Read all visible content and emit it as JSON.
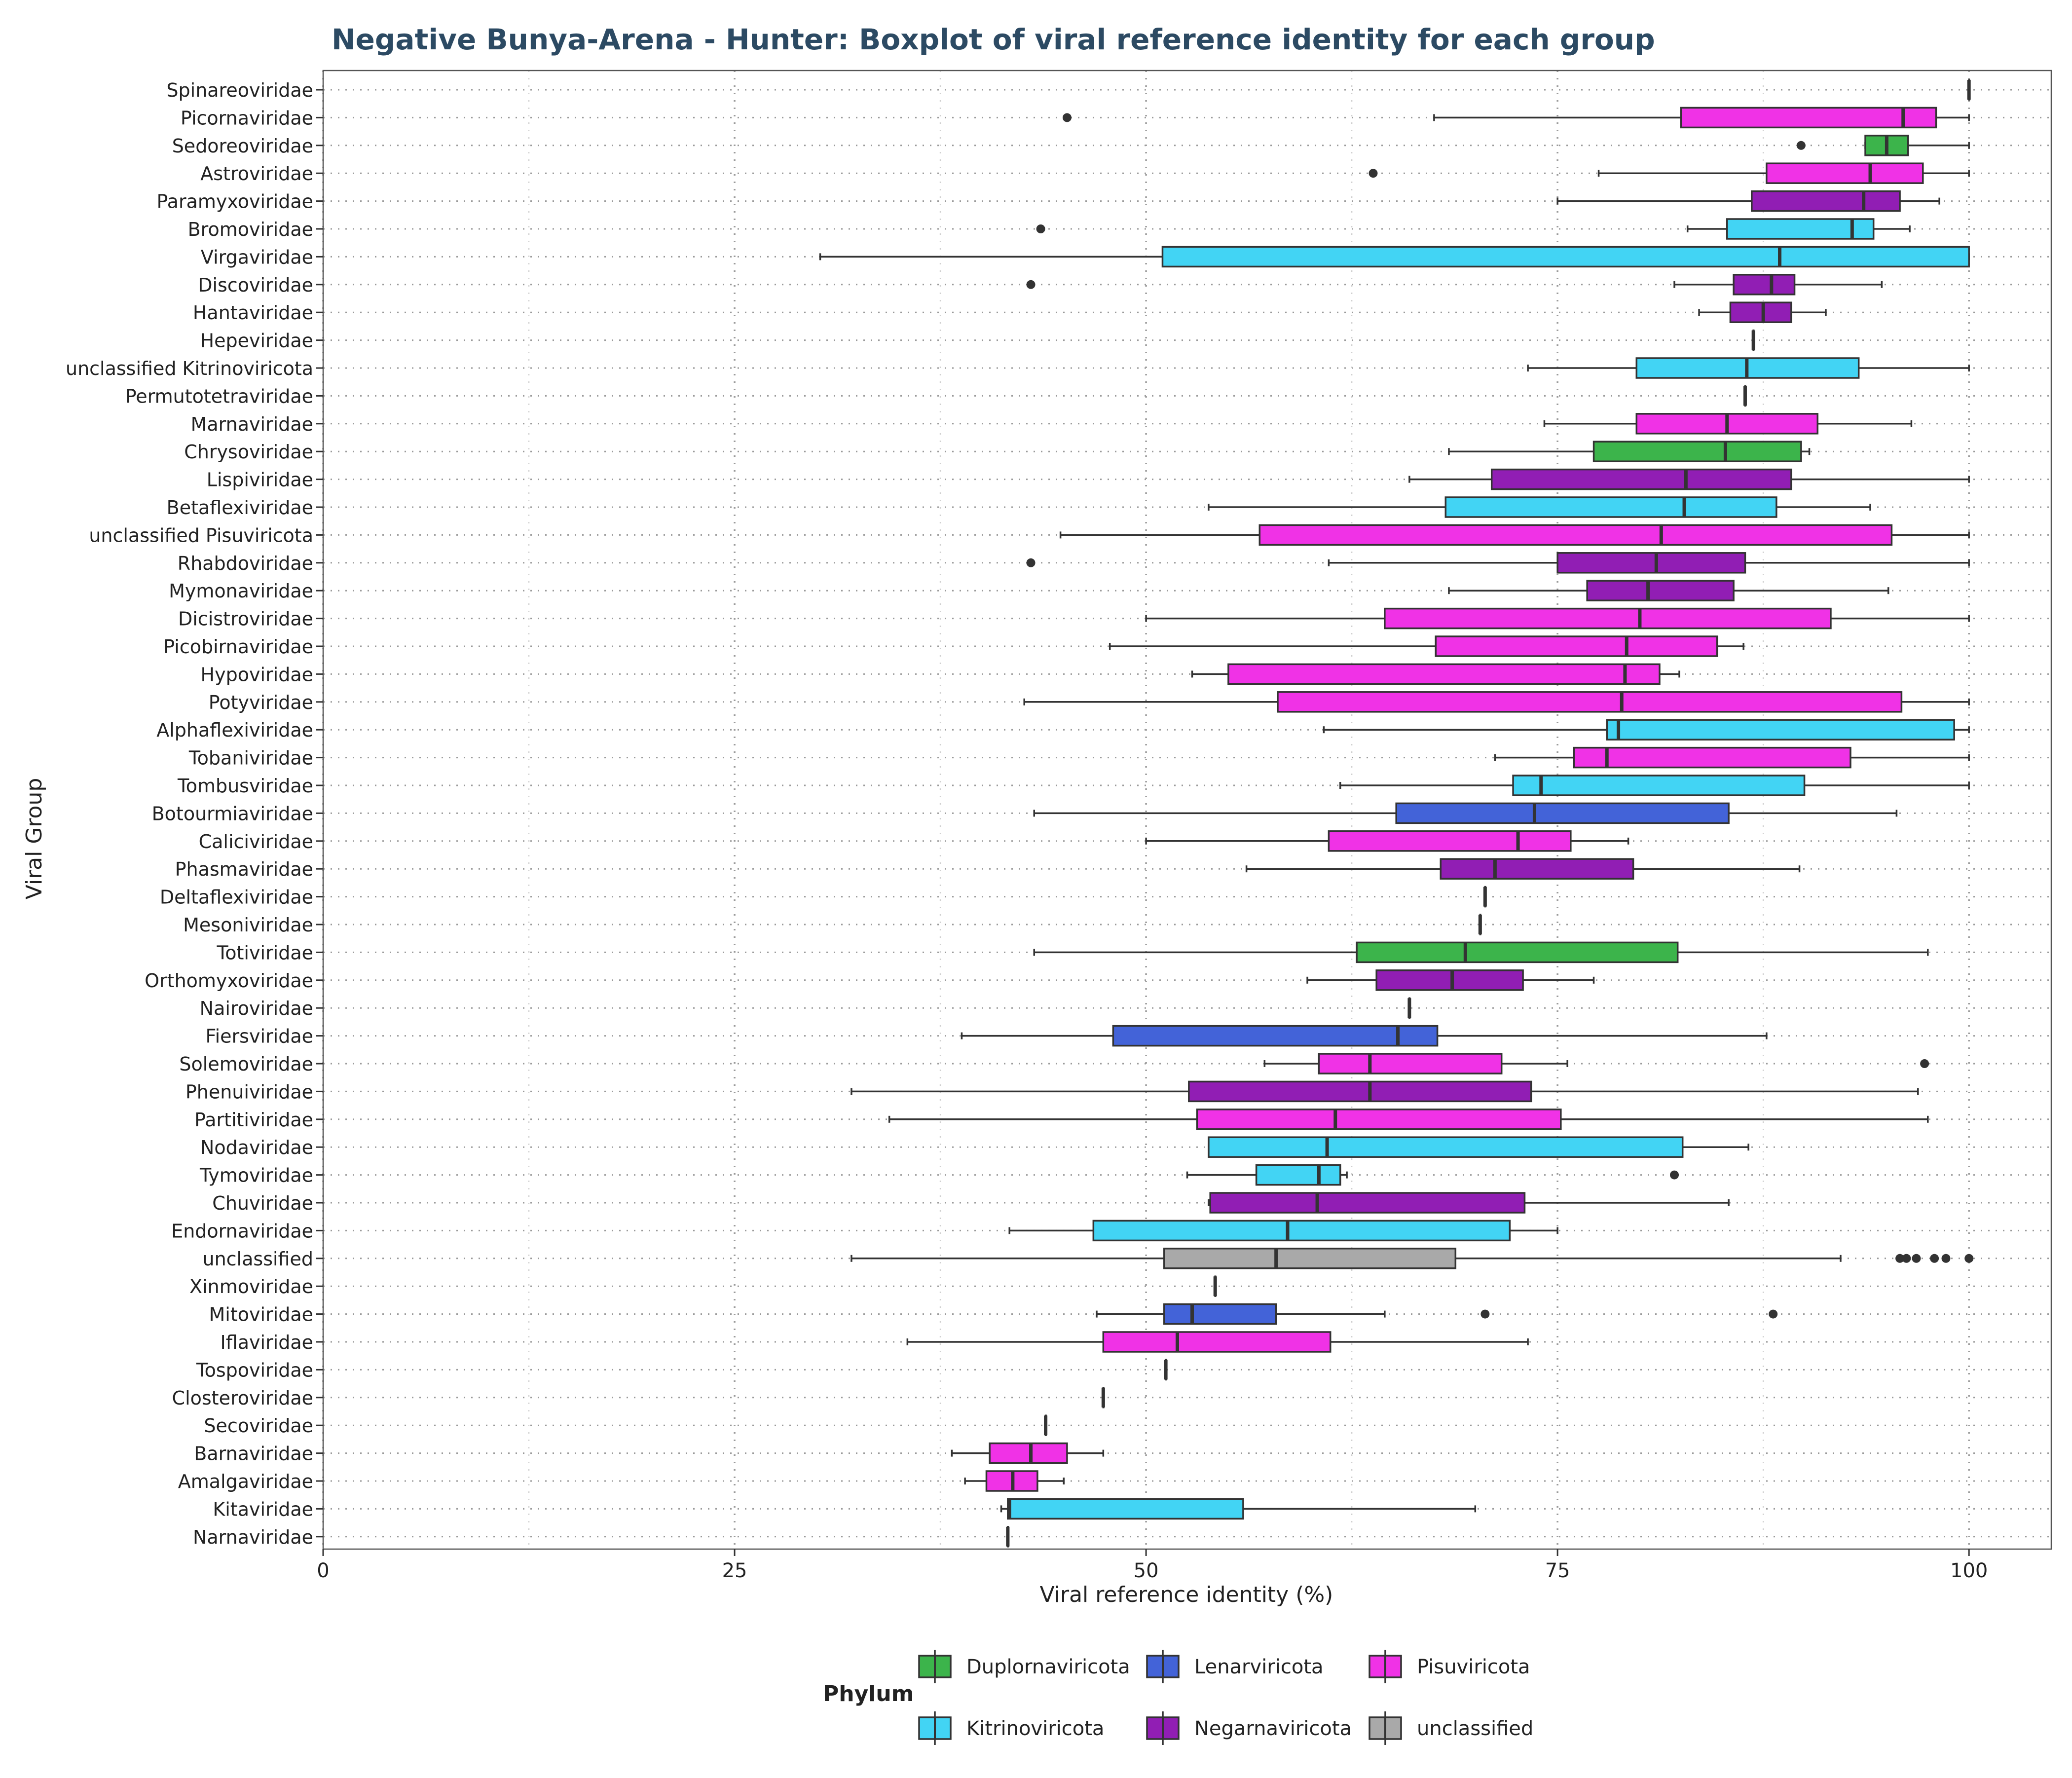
{
  "chart_data": {
    "type": "boxplot",
    "orientation": "horizontal",
    "title": "Negative Bunya-Arena - Hunter: Boxplot of viral reference identity for each group",
    "xlabel": "Viral reference identity (%)",
    "ylabel": "Viral Group",
    "xlim": [
      0,
      105
    ],
    "xticks": [
      0,
      25,
      50,
      75,
      100
    ],
    "grid": true,
    "legend": {
      "title": "Phylum",
      "position": "bottom",
      "items": [
        {
          "name": "Duplornaviricota",
          "color": "#3cb44b"
        },
        {
          "name": "Lenarviricota",
          "color": "#4363d8"
        },
        {
          "name": "Pisuviricota",
          "color": "#f032e6"
        },
        {
          "name": "Kitrinoviricota",
          "color": "#42d4f4"
        },
        {
          "name": "Negarnaviricota",
          "color": "#911eb4"
        },
        {
          "name": "unclassified",
          "color": "#a9a9a9"
        }
      ]
    },
    "groups": [
      {
        "name": "Spinareoviridae",
        "phylum": "Duplornaviricota",
        "min": 100,
        "q1": 100,
        "median": 100,
        "q3": 100,
        "max": 100,
        "outliers": []
      },
      {
        "name": "Picornaviridae",
        "phylum": "Pisuviricota",
        "min": 67.5,
        "q1": 82.5,
        "median": 96,
        "q3": 98,
        "max": 100,
        "outliers": [
          45.2
        ]
      },
      {
        "name": "Sedoreoviridae",
        "phylum": "Duplornaviricota",
        "min": 93.7,
        "q1": 93.7,
        "median": 95,
        "q3": 96.3,
        "max": 100,
        "outliers": [
          89.8
        ]
      },
      {
        "name": "Astroviridae",
        "phylum": "Pisuviricota",
        "min": 77.5,
        "q1": 87.7,
        "median": 94,
        "q3": 97.2,
        "max": 100,
        "outliers": [
          63.8
        ]
      },
      {
        "name": "Paramyxoviridae",
        "phylum": "Negarnaviricota",
        "min": 75,
        "q1": 86.8,
        "median": 93.6,
        "q3": 95.8,
        "max": 98.2,
        "outliers": []
      },
      {
        "name": "Bromoviridae",
        "phylum": "Kitrinoviricota",
        "min": 82.9,
        "q1": 85.3,
        "median": 92.9,
        "q3": 94.2,
        "max": 96.4,
        "outliers": [
          43.6
        ]
      },
      {
        "name": "Virgaviridae",
        "phylum": "Kitrinoviricota",
        "min": 30.2,
        "q1": 51,
        "median": 88.5,
        "q3": 100,
        "max": 100,
        "outliers": []
      },
      {
        "name": "Discoviridae",
        "phylum": "Negarnaviricota",
        "min": 82.1,
        "q1": 85.7,
        "median": 88,
        "q3": 89.4,
        "max": 94.7,
        "outliers": [
          43
        ]
      },
      {
        "name": "Hantaviridae",
        "phylum": "Negarnaviricota",
        "min": 83.6,
        "q1": 85.5,
        "median": 87.5,
        "q3": 89.2,
        "max": 91.3,
        "outliers": []
      },
      {
        "name": "Hepeviridae",
        "phylum": "Kitrinoviricota",
        "min": 86.9,
        "q1": 86.9,
        "median": 86.9,
        "q3": 86.9,
        "max": 86.9,
        "outliers": []
      },
      {
        "name": "unclassified Kitrinoviricota",
        "phylum": "Kitrinoviricota",
        "min": 73.2,
        "q1": 79.8,
        "median": 86.5,
        "q3": 93.3,
        "max": 100,
        "outliers": []
      },
      {
        "name": "Permutotetraviridae",
        "phylum": "Pisuviricota",
        "min": 86.4,
        "q1": 86.4,
        "median": 86.4,
        "q3": 86.4,
        "max": 86.4,
        "outliers": []
      },
      {
        "name": "Marnaviridae",
        "phylum": "Pisuviricota",
        "min": 74.2,
        "q1": 79.8,
        "median": 85.3,
        "q3": 90.8,
        "max": 96.5,
        "outliers": []
      },
      {
        "name": "Chrysoviridae",
        "phylum": "Duplornaviricota",
        "min": 68.4,
        "q1": 77.2,
        "median": 85.2,
        "q3": 89.8,
        "max": 90.3,
        "outliers": []
      },
      {
        "name": "Lispiviridae",
        "phylum": "Negarnaviricota",
        "min": 66,
        "q1": 71,
        "median": 82.8,
        "q3": 89.2,
        "max": 100,
        "outliers": []
      },
      {
        "name": "Betaflexiviridae",
        "phylum": "Kitrinoviricota",
        "min": 53.8,
        "q1": 68.2,
        "median": 82.7,
        "q3": 88.3,
        "max": 94,
        "outliers": []
      },
      {
        "name": "unclassified Pisuviricota",
        "phylum": "Pisuviricota",
        "min": 44.8,
        "q1": 56.9,
        "median": 81.3,
        "q3": 95.3,
        "max": 100,
        "outliers": []
      },
      {
        "name": "Rhabdoviridae",
        "phylum": "Negarnaviricota",
        "min": 61.1,
        "q1": 75,
        "median": 81,
        "q3": 86.4,
        "max": 100,
        "outliers": [
          43
        ]
      },
      {
        "name": "Mymonaviridae",
        "phylum": "Negarnaviricota",
        "min": 68.4,
        "q1": 76.8,
        "median": 80.5,
        "q3": 85.7,
        "max": 95.1,
        "outliers": []
      },
      {
        "name": "Dicistroviridae",
        "phylum": "Pisuviricota",
        "min": 50,
        "q1": 64.5,
        "median": 80,
        "q3": 91.6,
        "max": 100,
        "outliers": []
      },
      {
        "name": "Picobirnaviridae",
        "phylum": "Pisuviricota",
        "min": 47.8,
        "q1": 67.6,
        "median": 79.2,
        "q3": 84.7,
        "max": 86.3,
        "outliers": []
      },
      {
        "name": "Hypoviridae",
        "phylum": "Pisuviricota",
        "min": 52.8,
        "q1": 55,
        "median": 79.1,
        "q3": 81.2,
        "max": 82.4,
        "outliers": []
      },
      {
        "name": "Potyviridae",
        "phylum": "Pisuviricota",
        "min": 42.6,
        "q1": 58,
        "median": 78.9,
        "q3": 95.9,
        "max": 100,
        "outliers": []
      },
      {
        "name": "Alphaflexiviridae",
        "phylum": "Kitrinoviricota",
        "min": 60.8,
        "q1": 78,
        "median": 78.7,
        "q3": 99.1,
        "max": 100,
        "outliers": []
      },
      {
        "name": "Tobaniviridae",
        "phylum": "Pisuviricota",
        "min": 71.2,
        "q1": 76,
        "median": 78,
        "q3": 92.8,
        "max": 100,
        "outliers": []
      },
      {
        "name": "Tombusviridae",
        "phylum": "Kitrinoviricota",
        "min": 61.8,
        "q1": 72.3,
        "median": 74,
        "q3": 90,
        "max": 100,
        "outliers": []
      },
      {
        "name": "Botourmiaviridae",
        "phylum": "Lenarviricota",
        "min": 43.2,
        "q1": 65.2,
        "median": 73.6,
        "q3": 85.4,
        "max": 95.6,
        "outliers": []
      },
      {
        "name": "Caliciviridae",
        "phylum": "Pisuviricota",
        "min": 50,
        "q1": 61.1,
        "median": 72.6,
        "q3": 75.8,
        "max": 79.3,
        "outliers": []
      },
      {
        "name": "Phasmaviridae",
        "phylum": "Negarnaviricota",
        "min": 56.1,
        "q1": 67.9,
        "median": 71.2,
        "q3": 79.6,
        "max": 89.7,
        "outliers": []
      },
      {
        "name": "Deltaflexiviridae",
        "phylum": "Kitrinoviricota",
        "min": 70.6,
        "q1": 70.6,
        "median": 70.6,
        "q3": 70.6,
        "max": 70.6,
        "outliers": []
      },
      {
        "name": "Mesoniviridae",
        "phylum": "Pisuviricota",
        "min": 70.3,
        "q1": 70.3,
        "median": 70.3,
        "q3": 70.3,
        "max": 70.3,
        "outliers": []
      },
      {
        "name": "Totiviridae",
        "phylum": "Duplornaviricota",
        "min": 43.2,
        "q1": 62.8,
        "median": 69.4,
        "q3": 82.3,
        "max": 97.5,
        "outliers": []
      },
      {
        "name": "Orthomyxoviridae",
        "phylum": "Negarnaviricota",
        "min": 59.8,
        "q1": 64,
        "median": 68.6,
        "q3": 72.9,
        "max": 77.2,
        "outliers": []
      },
      {
        "name": "Nairoviridae",
        "phylum": "Negarnaviricota",
        "min": 66,
        "q1": 66,
        "median": 66,
        "q3": 66,
        "max": 66,
        "outliers": []
      },
      {
        "name": "Fiersviridae",
        "phylum": "Lenarviricota",
        "min": 38.8,
        "q1": 48,
        "median": 65.3,
        "q3": 67.7,
        "max": 87.7,
        "outliers": []
      },
      {
        "name": "Solemoviridae",
        "phylum": "Pisuviricota",
        "min": 57.2,
        "q1": 60.5,
        "median": 63.6,
        "q3": 71.6,
        "max": 75.6,
        "outliers": [
          97.3
        ]
      },
      {
        "name": "Phenuiviridae",
        "phylum": "Negarnaviricota",
        "min": 32.1,
        "q1": 52.6,
        "median": 63.6,
        "q3": 73.4,
        "max": 96.9,
        "outliers": []
      },
      {
        "name": "Partitiviridae",
        "phylum": "Pisuviricota",
        "min": 34.4,
        "q1": 53.1,
        "median": 61.5,
        "q3": 75.2,
        "max": 97.5,
        "outliers": []
      },
      {
        "name": "Nodaviridae",
        "phylum": "Kitrinoviricota",
        "min": 53.8,
        "q1": 53.8,
        "median": 61,
        "q3": 82.6,
        "max": 86.6,
        "outliers": []
      },
      {
        "name": "Tymoviridae",
        "phylum": "Kitrinoviricota",
        "min": 52.5,
        "q1": 56.7,
        "median": 60.5,
        "q3": 61.8,
        "max": 62.2,
        "outliers": [
          82.1
        ]
      },
      {
        "name": "Chuviridae",
        "phylum": "Negarnaviricota",
        "min": 53.8,
        "q1": 53.9,
        "median": 60.4,
        "q3": 73,
        "max": 85.4,
        "outliers": []
      },
      {
        "name": "Endornaviridae",
        "phylum": "Kitrinoviricota",
        "min": 41.7,
        "q1": 46.8,
        "median": 58.6,
        "q3": 72.1,
        "max": 75,
        "outliers": []
      },
      {
        "name": "unclassified",
        "phylum": "unclassified",
        "min": 32.1,
        "q1": 51.1,
        "median": 57.9,
        "q3": 68.8,
        "max": 92.2,
        "outliers": [
          95.8,
          96.2,
          96.8,
          97.9,
          98.6,
          100
        ]
      },
      {
        "name": "Xinmoviridae",
        "phylum": "Negarnaviricota",
        "min": 54.2,
        "q1": 54.2,
        "median": 54.2,
        "q3": 54.2,
        "max": 54.2,
        "outliers": []
      },
      {
        "name": "Mitoviridae",
        "phylum": "Lenarviricota",
        "min": 47,
        "q1": 51.1,
        "median": 52.8,
        "q3": 57.9,
        "max": 64.5,
        "outliers": [
          70.6,
          88.1
        ]
      },
      {
        "name": "Iflaviridae",
        "phylum": "Pisuviricota",
        "min": 35.5,
        "q1": 47.4,
        "median": 51.9,
        "q3": 61.2,
        "max": 73.2,
        "outliers": []
      },
      {
        "name": "Tospoviridae",
        "phylum": "Negarnaviricota",
        "min": 51.2,
        "q1": 51.2,
        "median": 51.2,
        "q3": 51.2,
        "max": 51.2,
        "outliers": []
      },
      {
        "name": "Closteroviridae",
        "phylum": "Kitrinoviricota",
        "min": 47.4,
        "q1": 47.4,
        "median": 47.4,
        "q3": 47.4,
        "max": 47.4,
        "outliers": []
      },
      {
        "name": "Secoviridae",
        "phylum": "Pisuviricota",
        "min": 43.9,
        "q1": 43.9,
        "median": 43.9,
        "q3": 43.9,
        "max": 43.9,
        "outliers": []
      },
      {
        "name": "Barnaviridae",
        "phylum": "Pisuviricota",
        "min": 38.2,
        "q1": 40.5,
        "median": 43,
        "q3": 45.2,
        "max": 47.4,
        "outliers": []
      },
      {
        "name": "Amalgaviridae",
        "phylum": "Pisuviricota",
        "min": 39,
        "q1": 40.3,
        "median": 41.9,
        "q3": 43.4,
        "max": 45,
        "outliers": []
      },
      {
        "name": "Kitaviridae",
        "phylum": "Kitrinoviricota",
        "min": 41.2,
        "q1": 41.6,
        "median": 41.7,
        "q3": 55.9,
        "max": 70,
        "outliers": []
      },
      {
        "name": "Narnaviridae",
        "phylum": "Lenarviricota",
        "min": 41.6,
        "q1": 41.6,
        "median": 41.6,
        "q3": 41.6,
        "max": 41.6,
        "outliers": []
      }
    ]
  }
}
